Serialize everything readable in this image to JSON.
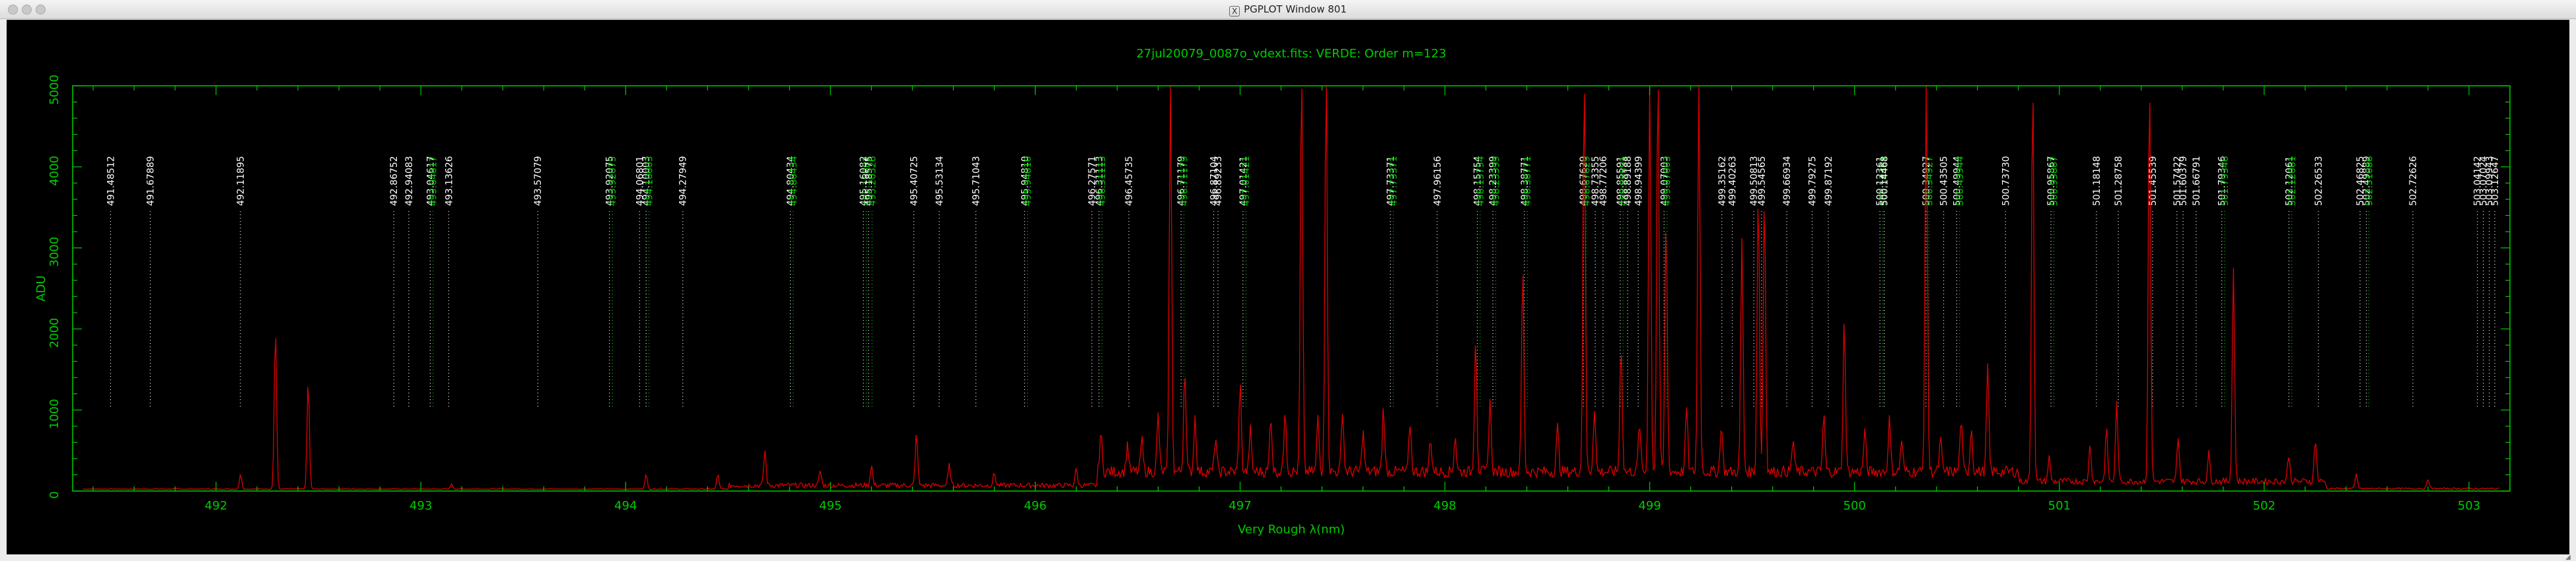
{
  "window": {
    "title": "PGPLOT Window 801",
    "icon": "x11-icon"
  },
  "chart_data": {
    "type": "line",
    "title": "27jul20079_0087o_vdext.fits: VERDE: Order m=123",
    "xlabel": "Very Rough λ(nm)",
    "ylabel": "ADU",
    "xlim": [
      491.3,
      503.2
    ],
    "ylim": [
      0,
      5000
    ],
    "x_ticks": [
      492,
      493,
      494,
      495,
      496,
      497,
      498,
      499,
      500,
      501,
      502,
      503
    ],
    "y_ticks": [
      0,
      1000,
      2000,
      3000,
      4000,
      5000
    ],
    "colors": {
      "frame": "#00cc00",
      "spectrum": "#e00000",
      "lines_white": "#ffffff",
      "lines_green": "#00cc00"
    },
    "spectrum_peaks": [
      [
        492.12,
        180
      ],
      [
        492.29,
        1980
      ],
      [
        492.45,
        1340
      ],
      [
        493.15,
        60
      ],
      [
        494.1,
        180
      ],
      [
        494.45,
        180
      ],
      [
        494.68,
        430
      ],
      [
        494.95,
        180
      ],
      [
        495.2,
        250
      ],
      [
        495.42,
        650
      ],
      [
        495.58,
        250
      ],
      [
        495.8,
        150
      ],
      [
        496.2,
        200
      ],
      [
        496.32,
        480
      ],
      [
        496.45,
        350
      ],
      [
        496.52,
        400
      ],
      [
        496.6,
        700
      ],
      [
        496.66,
        5000
      ],
      [
        496.73,
        1300
      ],
      [
        496.78,
        680
      ],
      [
        496.88,
        420
      ],
      [
        497.0,
        1100
      ],
      [
        497.05,
        520
      ],
      [
        497.15,
        700
      ],
      [
        497.22,
        800
      ],
      [
        497.3,
        5000
      ],
      [
        497.38,
        660
      ],
      [
        497.42,
        5000
      ],
      [
        497.5,
        780
      ],
      [
        497.6,
        500
      ],
      [
        497.7,
        800
      ],
      [
        497.83,
        600
      ],
      [
        497.93,
        420
      ],
      [
        498.05,
        450
      ],
      [
        498.15,
        1700
      ],
      [
        498.22,
        900
      ],
      [
        498.38,
        2550
      ],
      [
        498.55,
        550
      ],
      [
        498.68,
        5000
      ],
      [
        498.73,
        800
      ],
      [
        498.86,
        1590
      ],
      [
        498.95,
        600
      ],
      [
        499.0,
        5000
      ],
      [
        499.04,
        5000
      ],
      [
        499.08,
        3100
      ],
      [
        499.18,
        800
      ],
      [
        499.24,
        5000
      ],
      [
        499.35,
        600
      ],
      [
        499.45,
        2880
      ],
      [
        499.53,
        3500
      ],
      [
        499.56,
        3450
      ],
      [
        499.7,
        400
      ],
      [
        499.85,
        700
      ],
      [
        499.95,
        1900
      ],
      [
        500.05,
        500
      ],
      [
        500.17,
        650
      ],
      [
        500.23,
        400
      ],
      [
        500.35,
        5000
      ],
      [
        500.42,
        400
      ],
      [
        500.52,
        650
      ],
      [
        500.57,
        550
      ],
      [
        500.65,
        1300
      ],
      [
        500.87,
        5000
      ],
      [
        500.95,
        300
      ],
      [
        501.15,
        450
      ],
      [
        501.23,
        650
      ],
      [
        501.28,
        970
      ],
      [
        501.44,
        5000
      ],
      [
        501.58,
        570
      ],
      [
        501.73,
        350
      ],
      [
        501.85,
        2630
      ],
      [
        502.12,
        330
      ],
      [
        502.25,
        530
      ],
      [
        502.45,
        180
      ],
      [
        502.8,
        120
      ]
    ],
    "line_labels": [
      {
        "text": "491.48512",
        "x": 491.485,
        "color": "white"
      },
      {
        "text": "491.67889",
        "x": 491.679,
        "color": "white"
      },
      {
        "text": "492.11895",
        "x": 492.119,
        "color": "white"
      },
      {
        "text": "492.86752",
        "x": 492.868,
        "color": "white"
      },
      {
        "text": "492.94083",
        "x": 492.941,
        "color": "white"
      },
      {
        "text": "493.04617",
        "x": 493.046,
        "color": "white"
      },
      {
        "text": "493.04617",
        "x": 493.06,
        "color": "green"
      },
      {
        "text": "493.13626",
        "x": 493.136,
        "color": "white"
      },
      {
        "text": "493.57079",
        "x": 493.571,
        "color": "white"
      },
      {
        "text": "493.92075",
        "x": 493.921,
        "color": "white"
      },
      {
        "text": "493.92075",
        "x": 493.935,
        "color": "green"
      },
      {
        "text": "494.06801",
        "x": 494.068,
        "color": "white"
      },
      {
        "text": "494.10003",
        "x": 494.1,
        "color": "white"
      },
      {
        "text": "494.10003",
        "x": 494.114,
        "color": "green"
      },
      {
        "text": "494.27949",
        "x": 494.279,
        "color": "white"
      },
      {
        "text": "494.80434",
        "x": 494.804,
        "color": "white"
      },
      {
        "text": "494.80434",
        "x": 494.818,
        "color": "green"
      },
      {
        "text": "495.16082",
        "x": 495.161,
        "color": "white"
      },
      {
        "text": "495.16082",
        "x": 495.175,
        "color": "green"
      },
      {
        "text": "495.18575",
        "x": 495.186,
        "color": "white"
      },
      {
        "text": "495.20326",
        "x": 495.203,
        "color": "green"
      },
      {
        "text": "495.40725",
        "x": 495.407,
        "color": "white"
      },
      {
        "text": "495.53134",
        "x": 495.531,
        "color": "white"
      },
      {
        "text": "495.71043",
        "x": 495.71,
        "color": "white"
      },
      {
        "text": "495.94810",
        "x": 495.948,
        "color": "white"
      },
      {
        "text": "495.94810",
        "x": 495.962,
        "color": "green"
      },
      {
        "text": "496.27571",
        "x": 496.276,
        "color": "white"
      },
      {
        "text": "496.31113",
        "x": 496.311,
        "color": "white"
      },
      {
        "text": "496.31113",
        "x": 496.325,
        "color": "green"
      },
      {
        "text": "496.45735",
        "x": 496.457,
        "color": "white"
      },
      {
        "text": "496.71179",
        "x": 496.712,
        "color": "white"
      },
      {
        "text": "496.71179",
        "x": 496.726,
        "color": "green"
      },
      {
        "text": "496.87104",
        "x": 496.871,
        "color": "white"
      },
      {
        "text": "496.89233",
        "x": 496.892,
        "color": "white"
      },
      {
        "text": "497.01421",
        "x": 497.014,
        "color": "white"
      },
      {
        "text": "497.01421",
        "x": 497.028,
        "color": "green"
      },
      {
        "text": "497.73371",
        "x": 497.734,
        "color": "white"
      },
      {
        "text": "497.73371",
        "x": 497.748,
        "color": "green"
      },
      {
        "text": "497.96156",
        "x": 497.962,
        "color": "white"
      },
      {
        "text": "498.15754",
        "x": 498.158,
        "color": "white"
      },
      {
        "text": "498.15754",
        "x": 498.172,
        "color": "green"
      },
      {
        "text": "498.23399",
        "x": 498.234,
        "color": "white"
      },
      {
        "text": "498.23399",
        "x": 498.248,
        "color": "green"
      },
      {
        "text": "498.38771",
        "x": 498.388,
        "color": "white"
      },
      {
        "text": "498.38771",
        "x": 498.402,
        "color": "green"
      },
      {
        "text": "498.67629",
        "x": 498.676,
        "color": "white"
      },
      {
        "text": "498.67629",
        "x": 498.69,
        "color": "green"
      },
      {
        "text": "498.73355",
        "x": 498.734,
        "color": "white"
      },
      {
        "text": "498.77206",
        "x": 498.772,
        "color": "white"
      },
      {
        "text": "498.85591",
        "x": 498.856,
        "color": "white"
      },
      {
        "text": "498.85591",
        "x": 498.87,
        "color": "green"
      },
      {
        "text": "498.89188",
        "x": 498.892,
        "color": "white"
      },
      {
        "text": "498.94399",
        "x": 498.944,
        "color": "white"
      },
      {
        "text": "499.07003",
        "x": 499.07,
        "color": "white"
      },
      {
        "text": "499.07003",
        "x": 499.084,
        "color": "green"
      },
      {
        "text": "499.35162",
        "x": 499.352,
        "color": "white"
      },
      {
        "text": "499.40263",
        "x": 499.403,
        "color": "white"
      },
      {
        "text": "499.50813",
        "x": 499.508,
        "color": "white"
      },
      {
        "text": "499.54565",
        "x": 499.546,
        "color": "white"
      },
      {
        "text": "499.66934",
        "x": 499.669,
        "color": "white"
      },
      {
        "text": "499.79275",
        "x": 499.793,
        "color": "white"
      },
      {
        "text": "499.87192",
        "x": 499.872,
        "color": "white"
      },
      {
        "text": "500.12361",
        "x": 500.124,
        "color": "white"
      },
      {
        "text": "500.12361",
        "x": 500.138,
        "color": "green"
      },
      {
        "text": "500.14468",
        "x": 500.145,
        "color": "white"
      },
      {
        "text": "500.34927",
        "x": 500.349,
        "color": "white"
      },
      {
        "text": "500.34927",
        "x": 500.363,
        "color": "green"
      },
      {
        "text": "500.43505",
        "x": 500.435,
        "color": "white"
      },
      {
        "text": "500.49944",
        "x": 500.499,
        "color": "white"
      },
      {
        "text": "500.49944",
        "x": 500.513,
        "color": "green"
      },
      {
        "text": "500.73730",
        "x": 500.737,
        "color": "white"
      },
      {
        "text": "500.95867",
        "x": 500.959,
        "color": "white"
      },
      {
        "text": "500.95867",
        "x": 500.973,
        "color": "green"
      },
      {
        "text": "501.18148",
        "x": 501.181,
        "color": "white"
      },
      {
        "text": "501.28758",
        "x": 501.288,
        "color": "white"
      },
      {
        "text": "501.45539",
        "x": 501.455,
        "color": "white"
      },
      {
        "text": "501.57422",
        "x": 501.574,
        "color": "white"
      },
      {
        "text": "501.60379",
        "x": 501.604,
        "color": "white"
      },
      {
        "text": "501.66791",
        "x": 501.668,
        "color": "white"
      },
      {
        "text": "501.79346",
        "x": 501.793,
        "color": "white"
      },
      {
        "text": "501.79346",
        "x": 501.807,
        "color": "green"
      },
      {
        "text": "502.12061",
        "x": 502.121,
        "color": "white"
      },
      {
        "text": "502.12061",
        "x": 502.135,
        "color": "green"
      },
      {
        "text": "502.26533",
        "x": 502.265,
        "color": "white"
      },
      {
        "text": "502.46825",
        "x": 502.468,
        "color": "white"
      },
      {
        "text": "502.49889",
        "x": 502.499,
        "color": "white"
      },
      {
        "text": "502.51086",
        "x": 502.511,
        "color": "green"
      },
      {
        "text": "502.72626",
        "x": 502.726,
        "color": "white"
      },
      {
        "text": "503.04142",
        "x": 503.041,
        "color": "white"
      },
      {
        "text": "503.07024",
        "x": 503.07,
        "color": "white"
      },
      {
        "text": "503.09943",
        "x": 503.099,
        "color": "white"
      },
      {
        "text": "503.12647",
        "x": 503.126,
        "color": "white"
      }
    ]
  }
}
